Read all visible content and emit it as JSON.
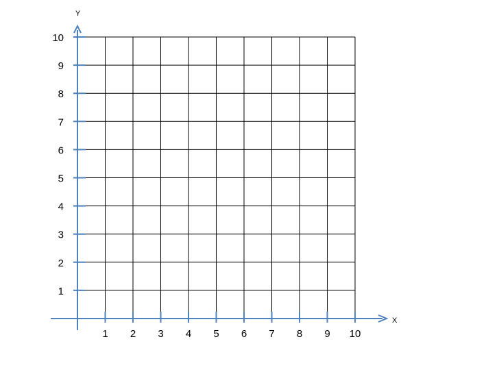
{
  "chart_data": {
    "type": "scatter",
    "title": "",
    "xlabel": "X",
    "ylabel": "Y",
    "xlim": [
      0,
      10
    ],
    "ylim": [
      0,
      10
    ],
    "x_ticks": [
      "1",
      "2",
      "3",
      "4",
      "5",
      "6",
      "7",
      "8",
      "9",
      "10"
    ],
    "y_ticks": [
      "1",
      "2",
      "3",
      "4",
      "5",
      "6",
      "7",
      "8",
      "9",
      "10"
    ],
    "grid": true,
    "series": [],
    "colors": {
      "axis": "#4f81bd",
      "grid": "#000000"
    }
  }
}
